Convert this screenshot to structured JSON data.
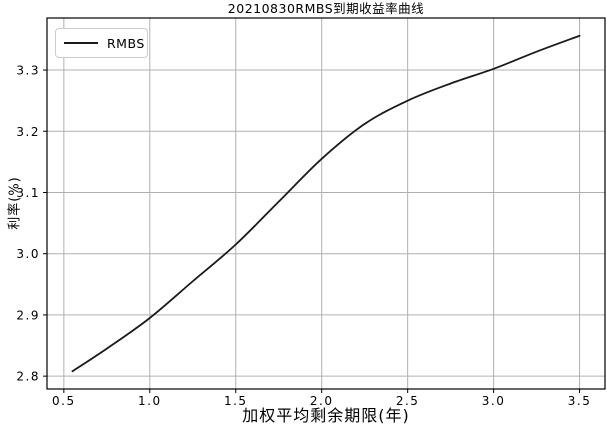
{
  "chart_data": {
    "type": "line",
    "title": "20210830RMBS到期收益率曲线",
    "xlabel": "加权平均剩余期限(年)",
    "ylabel": "利率(%)",
    "series": [
      {
        "name": "RMBS",
        "x": [
          0.55,
          0.75,
          1.0,
          1.25,
          1.5,
          1.75,
          2.0,
          2.25,
          2.5,
          2.75,
          3.0,
          3.25,
          3.5
        ],
        "y": [
          2.808,
          2.845,
          2.895,
          2.955,
          3.015,
          3.085,
          3.155,
          3.212,
          3.25,
          3.278,
          3.302,
          3.33,
          3.356
        ]
      }
    ],
    "xticks": [
      0.5,
      1.0,
      1.5,
      2.0,
      2.5,
      3.0,
      3.5
    ],
    "yticks": [
      2.8,
      2.9,
      3.0,
      3.1,
      3.2,
      3.3
    ],
    "xlim": [
      0.402,
      3.648
    ],
    "ylim": [
      2.779,
      3.385
    ],
    "grid": true,
    "legend_position": "upper left",
    "colors": {
      "line": "#1a1a1a",
      "grid": "#b0b0b0",
      "spine": "#000000",
      "background": "#ffffff",
      "text": "#000000",
      "legend_border": "#cccccc"
    }
  }
}
